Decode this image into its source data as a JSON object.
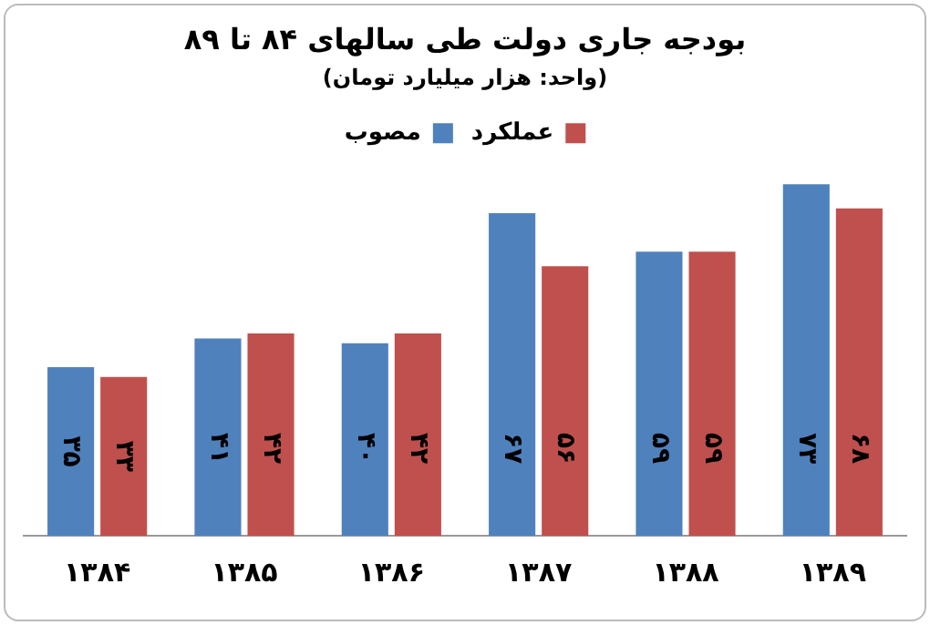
{
  "chart_data": {
    "type": "bar",
    "title": "بودجه جاری دولت طی سالهای ۸۴ تا ۸۹",
    "subtitle": "(واحد: هزار میلیارد تومان)",
    "categories": [
      "۱۳۸۴",
      "۱۳۸۵",
      "۱۳۸۶",
      "۱۳۸۷",
      "۱۳۸۸",
      "۱۳۸۹"
    ],
    "series": [
      {
        "name": "مصوب",
        "color": "#4f81bd",
        "values": [
          35,
          41,
          40,
          67,
          59,
          73
        ],
        "value_labels": [
          "۳۵",
          "۴۱",
          "۴۰",
          "۶۷",
          "۵۹",
          "۷۳"
        ]
      },
      {
        "name": "عملکرد",
        "color": "#c0504d",
        "values": [
          33,
          42,
          42,
          56,
          59,
          68
        ],
        "value_labels": [
          "۳۳",
          "۴۲",
          "۴۲",
          "۵۶",
          "۵۹",
          "۶۸"
        ]
      }
    ],
    "legend": "top",
    "grid": false
  }
}
